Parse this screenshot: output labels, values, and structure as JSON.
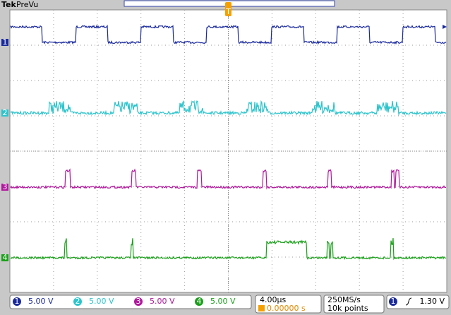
{
  "header": {
    "brand": "Tek",
    "mode": "PreVu"
  },
  "trigger_marker": "T",
  "channels": [
    {
      "marker": "1",
      "scale": "5.00 V"
    },
    {
      "marker": "2",
      "scale": "5.00 V"
    },
    {
      "marker": "3",
      "scale": "5.00 V"
    },
    {
      "marker": "4",
      "scale": "5.00 V"
    }
  ],
  "timebase": {
    "scale": "4.00µs",
    "trigger_position": "0.00000 s"
  },
  "acquisition": {
    "rate": "250MS/s",
    "record": "10k points"
  },
  "trigger": {
    "source": "1",
    "level": "1.30 V"
  }
}
